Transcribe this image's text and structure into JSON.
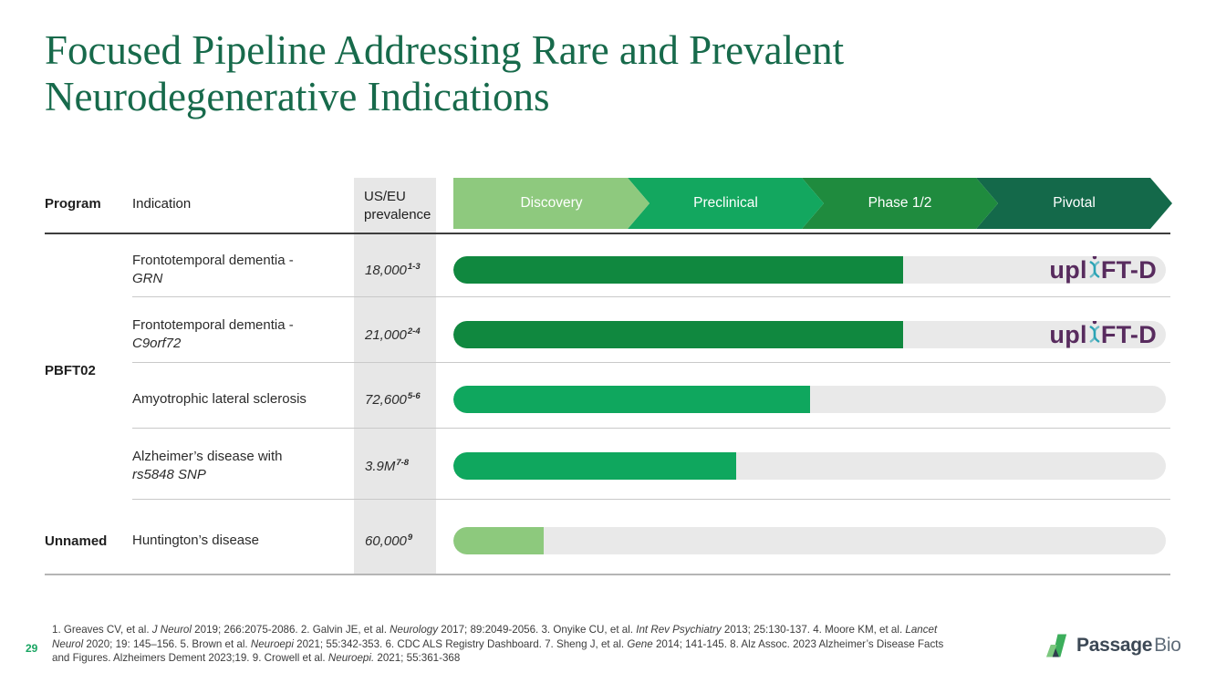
{
  "slide": {
    "title_line1": "Focused Pipeline Addressing Rare and Prevalent",
    "title_line2": "Neurodegenerative Indications",
    "title_color": "#176a4b",
    "page_number": "29"
  },
  "table": {
    "headers": {
      "program": "Program",
      "indication": "Indication",
      "prevalence": "US/EU prevalence"
    },
    "phases": [
      {
        "label": "Discovery",
        "color": "#8ec97e"
      },
      {
        "label": "Preclinical",
        "color": "#13a75f"
      },
      {
        "label": "Phase 1/2",
        "color": "#1f8b3e"
      },
      {
        "label": "Pivotal",
        "color": "#14694a"
      }
    ],
    "program_groups": [
      {
        "name": "PBFT02"
      },
      {
        "name": "Unnamed"
      }
    ],
    "rows": [
      {
        "program": "PBFT02",
        "indication_line1": "Frontotemporal dementia -",
        "indication_line2": "GRN",
        "line2_italic": true,
        "prevalence": "18,000",
        "prevalence_sup": "1-3",
        "bar_pct": 63.1,
        "bar_color": "#10883f",
        "has_uplift_logo": true
      },
      {
        "program": "PBFT02",
        "indication_line1": "Frontotemporal dementia -",
        "indication_line2": "C9orf72",
        "line2_italic": true,
        "prevalence": "21,000",
        "prevalence_sup": "2-4",
        "bar_pct": 63.1,
        "bar_color": "#10883f",
        "has_uplift_logo": true
      },
      {
        "program": "PBFT02",
        "indication_line1": "Amyotrophic lateral sclerosis",
        "indication_line2": "",
        "line2_italic": false,
        "prevalence": "72,600",
        "prevalence_sup": "5-6",
        "bar_pct": 50.1,
        "bar_color": "#0fa75e",
        "has_uplift_logo": false
      },
      {
        "program": "PBFT02",
        "indication_line1": "Alzheimer’s disease with",
        "indication_line2": "rs5848 SNP",
        "line2_italic": true,
        "prevalence": "3.9M",
        "prevalence_sup": "7-8",
        "bar_pct": 39.7,
        "bar_color": "#0fa75e",
        "has_uplift_logo": false
      },
      {
        "program": "Unnamed",
        "indication_line1": "Huntington’s disease",
        "indication_line2": "",
        "line2_italic": false,
        "prevalence": "60,000",
        "prevalence_sup": "9",
        "bar_pct": 12.7,
        "bar_color": "#8dc97d",
        "has_uplift_logo": false
      }
    ]
  },
  "brand": {
    "uplift_prefix": "upl",
    "uplift_suffix": "FT-D",
    "uplift_purple": "#582b5e",
    "uplift_teal": "#2ba3b5",
    "passage_bold": "Passage",
    "passage_light": "Bio",
    "passage_green": "#3cae5b",
    "passage_light_green": "#7dc87f",
    "passage_navy": "#2f3e4e"
  },
  "footnotes": {
    "lines": [
      [
        {
          "t": "1. Greaves CV, et al. ",
          "i": false
        },
        {
          "t": "J Neurol",
          "i": true
        },
        {
          "t": " 2019; 266:2075-2086. 2. Galvin JE, et al. ",
          "i": false
        },
        {
          "t": "Neurology",
          "i": true
        },
        {
          "t": " 2017; 89:2049-2056. 3. Onyike CU, et al. ",
          "i": false
        },
        {
          "t": "Int Rev Psychiatry",
          "i": true
        },
        {
          "t": " 2013; 25:130-137. 4. Moore KM, et al. ",
          "i": false
        },
        {
          "t": "Lancet",
          "i": true
        }
      ],
      [
        {
          "t": "Neurol",
          "i": true
        },
        {
          "t": " 2020; 19: 145–156. 5. Brown et al. ",
          "i": false
        },
        {
          "t": "Neuroepi",
          "i": true
        },
        {
          "t": " 2021; 55:342-353. 6. CDC ALS Registry Dashboard. 7. Sheng J, et al. ",
          "i": false
        },
        {
          "t": "Gene",
          "i": true
        },
        {
          "t": " 2014; 141-145. 8. Alz Assoc. 2023 Alzheimer’s Disease Facts",
          "i": false
        }
      ],
      [
        {
          "t": "and Figures. Alzheimers Dement 2023;19. 9. Crowell et al. ",
          "i": false
        },
        {
          "t": "Neuroepi.",
          "i": true
        },
        {
          "t": " 2021; 55:361-368",
          "i": false
        }
      ]
    ]
  }
}
